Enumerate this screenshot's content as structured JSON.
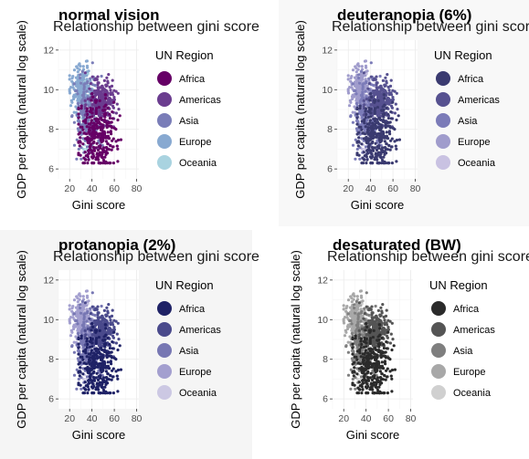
{
  "figure": {
    "background_panel_colors": [
      "#ffffff",
      "#f8f8f8",
      "#f5f5f5",
      "#ffffff"
    ]
  },
  "chart_data": [
    {
      "type": "scatter",
      "title": "normal vision",
      "subtitle": "Relationship between gini score",
      "xlabel": "Gini score",
      "ylabel": "GDP per capita (natural log scale)",
      "xlim": [
        10,
        82
      ],
      "ylim": [
        5.5,
        12.5
      ],
      "x_ticks": [
        20,
        40,
        60,
        80
      ],
      "y_ticks": [
        6,
        8,
        10,
        12
      ],
      "grid": true,
      "legend_title": "UN Region",
      "legend_position": "right",
      "series": [
        {
          "name": "Africa",
          "color": "#660066"
        },
        {
          "name": "Americas",
          "color": "#6b3d8f"
        },
        {
          "name": "Asia",
          "color": "#7a7db8"
        },
        {
          "name": "Europe",
          "color": "#88a9d1"
        },
        {
          "name": "Oceania",
          "color": "#a9d3e0"
        }
      ]
    },
    {
      "type": "scatter",
      "title": "deuteranopia (6%)",
      "subtitle": "Relationship between gini score",
      "xlabel": "Gini score",
      "ylabel": "GDP per capita (natural log scale)",
      "xlim": [
        10,
        82
      ],
      "ylim": [
        5.5,
        12.5
      ],
      "x_ticks": [
        20,
        40,
        60,
        80
      ],
      "y_ticks": [
        6,
        8,
        10,
        12
      ],
      "grid": true,
      "legend_title": "UN Region",
      "legend_position": "right",
      "series": [
        {
          "name": "Africa",
          "color": "#3a3a70"
        },
        {
          "name": "Americas",
          "color": "#565190"
        },
        {
          "name": "Asia",
          "color": "#7b7bb8"
        },
        {
          "name": "Europe",
          "color": "#a09ccc"
        },
        {
          "name": "Oceania",
          "color": "#c9c2e2"
        }
      ]
    },
    {
      "type": "scatter",
      "title": "protanopia (2%)",
      "subtitle": "Relationship between gini score",
      "xlabel": "Gini score",
      "ylabel": "GDP per capita (natural log scale)",
      "xlim": [
        10,
        82
      ],
      "ylim": [
        5.5,
        12.5
      ],
      "x_ticks": [
        20,
        40,
        60,
        80
      ],
      "y_ticks": [
        6,
        8,
        10,
        12
      ],
      "grid": true,
      "legend_title": "UN Region",
      "legend_position": "right",
      "series": [
        {
          "name": "Africa",
          "color": "#1f2266"
        },
        {
          "name": "Americas",
          "color": "#4a4a8c"
        },
        {
          "name": "Asia",
          "color": "#7777b3"
        },
        {
          "name": "Europe",
          "color": "#a39fcf"
        },
        {
          "name": "Oceania",
          "color": "#ccc8e3"
        }
      ]
    },
    {
      "type": "scatter",
      "title": "desaturated (BW)",
      "subtitle": "Relationship between gini score",
      "xlabel": "Gini score",
      "ylabel": "GDP per capita (natural log scale)",
      "xlim": [
        10,
        82
      ],
      "ylim": [
        5.5,
        12.5
      ],
      "x_ticks": [
        20,
        40,
        60,
        80
      ],
      "y_ticks": [
        6,
        8,
        10,
        12
      ],
      "grid": true,
      "legend_title": "UN Region",
      "legend_position": "right",
      "series": [
        {
          "name": "Africa",
          "color": "#2b2b2b"
        },
        {
          "name": "Americas",
          "color": "#555555"
        },
        {
          "name": "Asia",
          "color": "#7f7f7f"
        },
        {
          "name": "Europe",
          "color": "#a8a8a8"
        },
        {
          "name": "Oceania",
          "color": "#d0d0d0"
        }
      ]
    }
  ]
}
